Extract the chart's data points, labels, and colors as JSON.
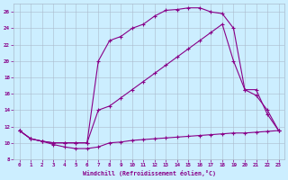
{
  "xlabel": "Windchill (Refroidissement éolien,°C)",
  "bg_color": "#cceeff",
  "line_color": "#880088",
  "grid_color": "#aabbcc",
  "xlim": [
    -0.5,
    23.5
  ],
  "ylim": [
    8,
    27
  ],
  "xticks": [
    0,
    1,
    2,
    3,
    4,
    5,
    6,
    7,
    8,
    9,
    10,
    11,
    12,
    13,
    14,
    15,
    16,
    17,
    18,
    19,
    20,
    21,
    22,
    23
  ],
  "yticks": [
    8,
    10,
    12,
    14,
    16,
    18,
    20,
    22,
    24,
    26
  ],
  "curve1_x": [
    0,
    1,
    2,
    3,
    4,
    5,
    6,
    7,
    8,
    9,
    10,
    11,
    12,
    13,
    14,
    15,
    16,
    17,
    18,
    19,
    20,
    21,
    22,
    23
  ],
  "curve1_y": [
    11.5,
    10.5,
    10.2,
    9.8,
    9.5,
    9.3,
    9.3,
    9.5,
    10.0,
    10.1,
    10.3,
    10.4,
    10.5,
    10.6,
    10.7,
    10.8,
    10.9,
    11.0,
    11.1,
    11.2,
    11.2,
    11.3,
    11.4,
    11.5
  ],
  "curve2_x": [
    0,
    1,
    2,
    3,
    4,
    5,
    6,
    7,
    8,
    9,
    10,
    11,
    12,
    13,
    14,
    15,
    16,
    17,
    18,
    19,
    20,
    21,
    22,
    23
  ],
  "curve2_y": [
    11.5,
    10.5,
    10.2,
    10.0,
    10.0,
    10.0,
    10.0,
    20.0,
    22.5,
    23.0,
    24.0,
    24.5,
    25.5,
    26.2,
    26.3,
    26.5,
    26.5,
    26.0,
    25.8,
    24.0,
    16.5,
    15.8,
    14.0,
    11.5
  ],
  "curve3_x": [
    0,
    1,
    2,
    3,
    4,
    5,
    6,
    7,
    8,
    9,
    10,
    11,
    12,
    13,
    14,
    15,
    16,
    17,
    18,
    19,
    20,
    21,
    22,
    23
  ],
  "curve3_y": [
    11.5,
    10.5,
    10.2,
    10.0,
    10.0,
    10.0,
    10.0,
    14.0,
    14.5,
    15.5,
    16.5,
    17.5,
    18.5,
    19.5,
    20.5,
    21.5,
    22.5,
    23.5,
    24.5,
    20.0,
    16.5,
    16.5,
    13.5,
    11.5
  ]
}
